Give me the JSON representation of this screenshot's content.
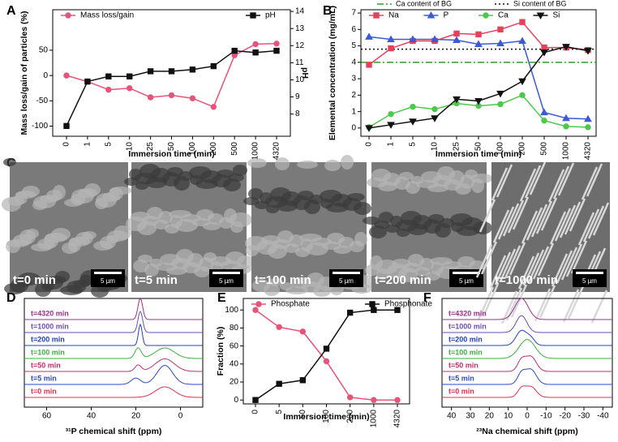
{
  "chart_data": [
    {
      "type": "line",
      "panel_label": "A",
      "categories": [
        "0",
        "1",
        "5",
        "10",
        "25",
        "50",
        "100",
        "200",
        "500",
        "1000",
        "4320"
      ],
      "x_label": "Immersion time (min)",
      "y_label": "Mass loss/gain of particles (%)",
      "y2_label": "pH",
      "ylim": [
        -120,
        130
      ],
      "yticks": [
        -100,
        -50,
        0,
        50
      ],
      "y2lim": [
        6.7,
        14.1
      ],
      "y2ticks": [
        8,
        9,
        10,
        11,
        12,
        13,
        14
      ],
      "series": [
        {
          "name": "Mass loss/gain",
          "color": "#e8537a",
          "marker": "circle",
          "values": [
            0,
            -12,
            -28,
            -25,
            -43,
            -39,
            -45,
            -62,
            40,
            62,
            63
          ]
        },
        {
          "name": "pH",
          "color": "#111111",
          "marker": "square",
          "axis": "y2",
          "values": [
            7.3,
            9.9,
            10.2,
            10.2,
            10.5,
            10.5,
            10.6,
            10.8,
            11.7,
            11.6,
            11.7
          ]
        }
      ]
    },
    {
      "type": "line",
      "panel_label": "B",
      "categories": [
        "0",
        "1",
        "5",
        "10",
        "25",
        "50",
        "100",
        "200",
        "500",
        "1000",
        "4320"
      ],
      "x_label": "Immersion time (min)",
      "y_label": "Elemental concentration (mg/mL)",
      "ylim": [
        -0.5,
        7.2
      ],
      "yticks": [
        0,
        1,
        2,
        3,
        4,
        5,
        6,
        7
      ],
      "reference_lines": [
        {
          "name": "Ca content of BG",
          "value": 4.0,
          "color": "#2ca02c",
          "dash": "8 3 2 3"
        },
        {
          "name": "Si content of BG",
          "value": 4.8,
          "color": "#111111",
          "dash": "2 3"
        }
      ],
      "series": [
        {
          "name": "Na",
          "color": "#e8405a",
          "marker": "square",
          "values": [
            3.85,
            4.85,
            5.3,
            5.3,
            5.75,
            5.7,
            6.0,
            6.45,
            4.9,
            4.9,
            4.75
          ]
        },
        {
          "name": "P",
          "color": "#3a5bd9",
          "marker": "triangle",
          "values": [
            5.55,
            5.4,
            5.4,
            5.4,
            5.35,
            5.1,
            5.15,
            5.3,
            0.95,
            0.6,
            0.55
          ]
        },
        {
          "name": "Ca",
          "color": "#4cc94c",
          "marker": "circle",
          "values": [
            0.05,
            0.85,
            1.3,
            1.15,
            1.5,
            1.35,
            1.45,
            2.0,
            0.45,
            0.1,
            0.05
          ]
        },
        {
          "name": "Si",
          "color": "#111111",
          "marker": "triangle-down",
          "values": [
            0,
            0.2,
            0.4,
            0.6,
            1.75,
            1.65,
            2.1,
            2.85,
            4.6,
            4.95,
            4.7
          ]
        }
      ]
    },
    {
      "type": "micrograph",
      "panel_label": "C",
      "panels": [
        {
          "label": "t=0 min",
          "scale_bar": "5 µm"
        },
        {
          "label": "t=5 min",
          "scale_bar": "5 µm"
        },
        {
          "label": "t=100 min",
          "scale_bar": "5 µm"
        },
        {
          "label": "t=200 min",
          "scale_bar": "5 µm"
        },
        {
          "label": "t=1000 min",
          "scale_bar": "5 µm"
        }
      ]
    },
    {
      "type": "spectra",
      "panel_label": "D",
      "x_label": "³¹P chemical shift (ppm)",
      "xlim": [
        70,
        -10
      ],
      "xticks": [
        60,
        40,
        20,
        0
      ],
      "series": [
        {
          "name": "t=4320 min",
          "color": "#9b2f8f",
          "peaks": [
            [
              18,
              1,
              1.5
            ]
          ]
        },
        {
          "name": "t=1000 min",
          "color": "#6a4fb0",
          "peaks": [
            [
              18,
              1,
              1.5
            ]
          ]
        },
        {
          "name": "t=200 min",
          "color": "#2040c0",
          "peaks": [
            [
              18,
              1,
              1.2
            ]
          ]
        },
        {
          "name": "t=100 min",
          "color": "#3cb043",
          "peaks": [
            [
              19,
              0.5,
              2
            ],
            [
              7,
              0.5,
              6
            ]
          ]
        },
        {
          "name": "t=50 min",
          "color": "#c0306a",
          "peaks": [
            [
              19,
              0.3,
              2
            ],
            [
              7,
              0.6,
              6
            ]
          ]
        },
        {
          "name": "t=5 min",
          "color": "#2a4ac8",
          "peaks": [
            [
              20,
              0.3,
              3
            ],
            [
              7,
              0.9,
              5
            ]
          ]
        },
        {
          "name": "t=0 min",
          "color": "#e03050",
          "peaks": [
            [
              7,
              0.5,
              6
            ]
          ]
        }
      ]
    },
    {
      "type": "line",
      "panel_label": "E",
      "categories": [
        "0",
        "5",
        "50",
        "100",
        "200",
        "1000",
        "4320"
      ],
      "x_label": "Immersion time (min)",
      "y_label": "Fraction (%)",
      "ylim": [
        -4.3,
        112.8
      ],
      "yticks": [
        0,
        20,
        40,
        60,
        80,
        100
      ],
      "series": [
        {
          "name": "Phosphate",
          "color": "#e8537a",
          "marker": "circle",
          "values": [
            100,
            81,
            76,
            43,
            3,
            0,
            0
          ]
        },
        {
          "name": "Phosphonate",
          "color": "#111111",
          "marker": "square",
          "values": [
            0,
            18,
            22,
            57,
            97,
            100,
            100
          ]
        }
      ]
    },
    {
      "type": "spectra",
      "panel_label": "F",
      "x_label": "²³Na chemical shift (ppm)",
      "xlim": [
        45,
        -45
      ],
      "xticks": [
        40,
        30,
        20,
        10,
        0,
        -10,
        -20,
        -30,
        -40
      ],
      "series": [
        {
          "name": "t=4320 min",
          "color": "#9b2f8f",
          "peaks": [
            [
              3,
              1,
              5
            ]
          ]
        },
        {
          "name": "t=1000 min",
          "color": "#6a4fb0",
          "peaks": [
            [
              3,
              0.8,
              4
            ]
          ]
        },
        {
          "name": "t=200 min",
          "color": "#2040c0",
          "peaks": [
            [
              3,
              0.7,
              4
            ],
            [
              -2,
              0.3,
              3
            ]
          ]
        },
        {
          "name": "t=100 min",
          "color": "#3cb043",
          "peaks": [
            [
              0,
              0.9,
              6
            ]
          ]
        },
        {
          "name": "t=50 min",
          "color": "#c0306a",
          "peaks": [
            [
              3,
              0.5,
              3
            ],
            [
              -2,
              0.7,
              4
            ]
          ]
        },
        {
          "name": "t=5 min",
          "color": "#2a4ac8",
          "peaks": [
            [
              3,
              0.5,
              3
            ],
            [
              -2,
              0.7,
              4
            ]
          ]
        },
        {
          "name": "t=0 min",
          "color": "#e03050",
          "peaks": [
            [
              3,
              0.4,
              3
            ],
            [
              -2,
              0.5,
              4
            ]
          ]
        }
      ]
    }
  ]
}
